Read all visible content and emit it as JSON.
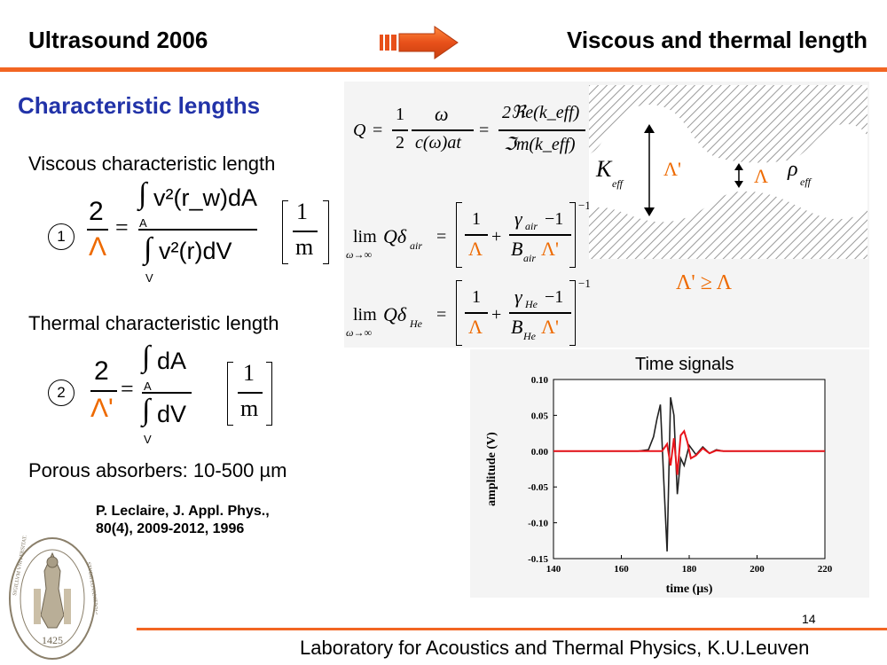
{
  "header": {
    "left_title": "Ultrasound 2006",
    "right_title": "Viscous and thermal length"
  },
  "section_title": "Characteristic lengths",
  "viscous": {
    "heading": "Viscous characteristic length",
    "number": "1",
    "lhs_num": "2",
    "lhs_den": "Λ",
    "num_integrand": "v²(r_w)dA",
    "num_domain": "A",
    "den_integrand": "v²(r)dV",
    "den_domain": "V",
    "unit_num": "1",
    "unit_den": "m"
  },
  "thermal": {
    "heading": "Thermal characteristic length",
    "number": "2",
    "lhs_num": "2",
    "lhs_den": "Λ'",
    "num_integrand": "dA",
    "num_domain": "A",
    "den_integrand": "dV",
    "den_domain": "V",
    "unit_num": "1",
    "unit_den": "m"
  },
  "porous": "Porous absorbers: 10-500 µm",
  "reference": {
    "line1": "P. Leclaire, J. Appl. Phys.,",
    "line2": "80(4), 2009-2012, 1996"
  },
  "quality_eq": {
    "lhs": "Q",
    "f1_num": "1",
    "f1_den": "2",
    "f2_num": "ω",
    "f2_den": "c(ω)at",
    "f3_num": "2ℜe(k_eff)",
    "f3_den": "ℑm(k_eff)"
  },
  "limits": [
    {
      "lim": "lim",
      "under": "ω→∞",
      "lhs": "Qδ",
      "sub": "air",
      "gamma": "γ",
      "gamma_sub": "air",
      "minus_one": "−1",
      "B": "B",
      "B_sub": "air",
      "Lambda": "Λ",
      "Lambda_prime": "Λ'",
      "power": "−1",
      "one": "1"
    },
    {
      "lim": "lim",
      "under": "ω→∞",
      "lhs": "Qδ",
      "sub": "He",
      "gamma": "γ",
      "gamma_sub": "He",
      "minus_one": "−1",
      "B": "B",
      "B_sub": "He",
      "Lambda": "Λ",
      "Lambda_prime": "Λ'",
      "power": "−1",
      "one": "1"
    }
  ],
  "pore_diagram": {
    "K_label": "K",
    "K_sub": "eff",
    "lambda_prime": "Λ'",
    "lambda": "Λ",
    "rho": "ρ",
    "rho_sub": "eff",
    "inequality": "Λ' ≥ Λ"
  },
  "time_signals": {
    "title": "Time signals"
  },
  "chart_data": {
    "type": "line",
    "title": "Time signals",
    "xlabel": "time (µs)",
    "ylabel": "amplitude (V)",
    "xlim": [
      140,
      220
    ],
    "ylim": [
      -0.15,
      0.1
    ],
    "x_ticks": [
      "140",
      "160",
      "180",
      "200",
      "220"
    ],
    "y_ticks": [
      "0.10",
      "0.05",
      "0.00",
      "-0.05",
      "-0.10",
      "-0.15"
    ],
    "series": [
      {
        "color": "#222222",
        "x": [
          140,
          165,
          168,
          169.5,
          170.5,
          171.5,
          172.5,
          173.5,
          174.5,
          175.5,
          176.5,
          177.5,
          178.5,
          180,
          182,
          184,
          186,
          188,
          190,
          195,
          220
        ],
        "y": [
          0,
          0,
          0.002,
          0.02,
          0.045,
          0.065,
          -0.04,
          -0.14,
          0.075,
          0.05,
          -0.06,
          -0.01,
          -0.02,
          0.008,
          -0.005,
          0.006,
          -0.003,
          0.002,
          0,
          0,
          0
        ]
      },
      {
        "color": "#e8141b",
        "x": [
          140,
          172,
          173.5,
          174.5,
          175.5,
          176.5,
          177.5,
          178.5,
          179.5,
          180.5,
          182,
          184,
          186,
          188,
          190,
          220
        ],
        "y": [
          0,
          0,
          0.01,
          -0.02,
          0.018,
          -0.033,
          0.022,
          0.028,
          0.012,
          -0.01,
          -0.006,
          0.004,
          -0.003,
          0.001,
          0,
          0
        ]
      }
    ],
    "grid": false
  },
  "page_number": "14",
  "footer": "Laboratory for Acoustics and Thermal Physics, K.U.Leuven",
  "colors": {
    "accent": "#f26522",
    "title_blue": "#2233a8",
    "lambda_orange": "#ee6a00"
  },
  "icons": {
    "arrow": "right-arrow-icon",
    "seal": "university-seal-icon"
  },
  "seal_text": "1425"
}
